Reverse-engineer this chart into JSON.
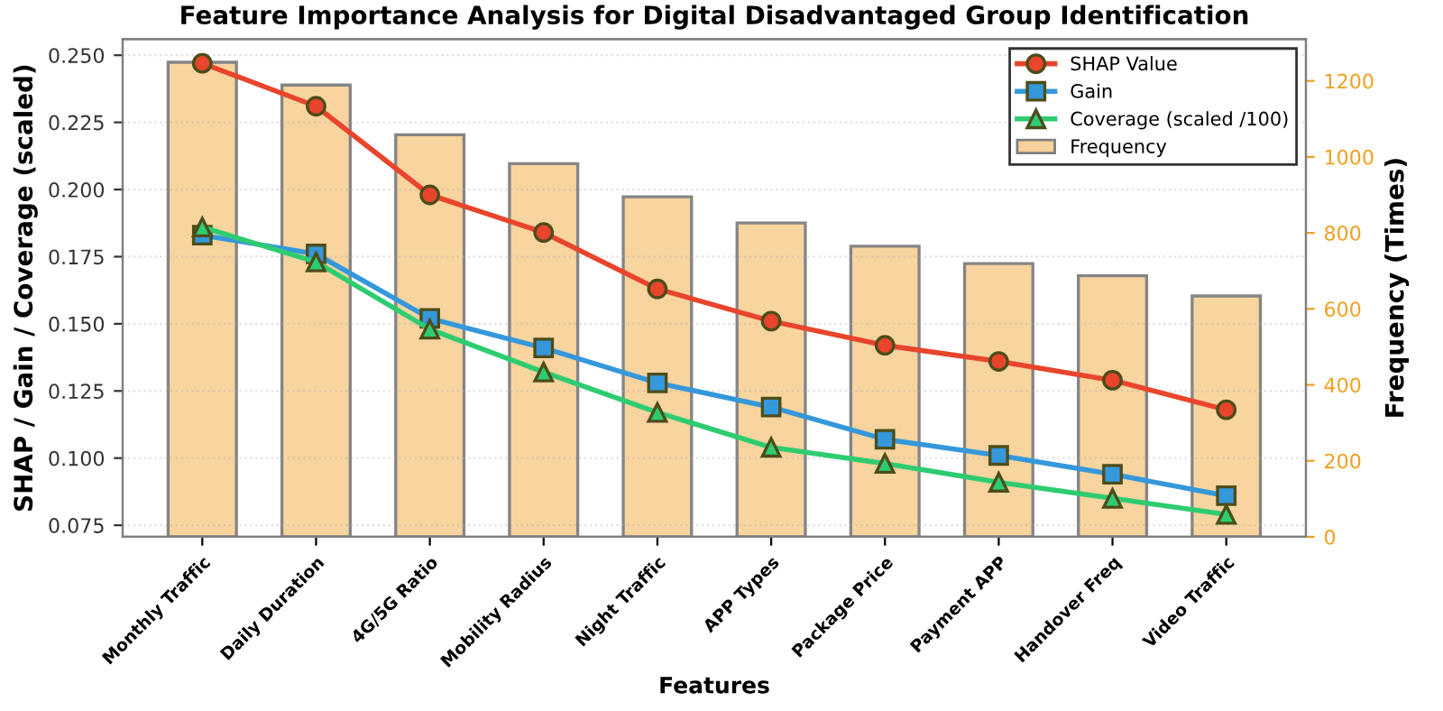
{
  "chart_data": {
    "type": "line",
    "title": "Feature Importance Analysis for Digital Disadvantaged Group Identification",
    "xlabel": "Features",
    "ylabel": "SHAP / Gain / Coverage (scaled)",
    "y2label": "Frequency (Times)",
    "categories": [
      "Monthly Traffic",
      "Daily Duration",
      "4G/5G Ratio",
      "Mobility Radius",
      "Night Traffic",
      "APP Types",
      "Package Price",
      "Payment APP",
      "Handover Freq",
      "Video Traffic"
    ],
    "series": [
      {
        "name": "Frequency",
        "type": "bar",
        "axis": "y2",
        "color": "#f8d29a",
        "values": [
          1249,
          1189,
          1058,
          982,
          895,
          826,
          765,
          719,
          687,
          634
        ]
      },
      {
        "name": "SHAP Value",
        "marker": "circle",
        "color": "#e8452c",
        "values": [
          0.247,
          0.231,
          0.198,
          0.184,
          0.163,
          0.151,
          0.142,
          0.136,
          0.129,
          0.118
        ]
      },
      {
        "name": "Gain",
        "marker": "square",
        "color": "#3498db",
        "values": [
          0.183,
          0.176,
          0.152,
          0.141,
          0.128,
          0.119,
          0.107,
          0.101,
          0.094,
          0.086
        ]
      },
      {
        "name": "Coverage (scaled /100)",
        "marker": "triangle",
        "color": "#2ecc71",
        "values": [
          0.186,
          0.173,
          0.148,
          0.132,
          0.117,
          0.104,
          0.098,
          0.091,
          0.085,
          0.079
        ]
      }
    ],
    "ylim": [
      0.0707,
      0.256
    ],
    "yticks": [
      {
        "value": 0.075,
        "label": "0.075"
      },
      {
        "value": 0.1,
        "label": "0.100"
      },
      {
        "value": 0.125,
        "label": "0.125"
      },
      {
        "value": 0.15,
        "label": "0.150"
      },
      {
        "value": 0.175,
        "label": "0.175"
      },
      {
        "value": 0.2,
        "label": "0.200"
      },
      {
        "value": 0.225,
        "label": "0.225"
      },
      {
        "value": 0.25,
        "label": "0.250"
      }
    ],
    "y2lim": [
      0,
      1310
    ],
    "y2ticks": [
      0,
      200,
      400,
      600,
      800,
      1000,
      1200
    ],
    "grid": "y",
    "legend": "top right"
  }
}
